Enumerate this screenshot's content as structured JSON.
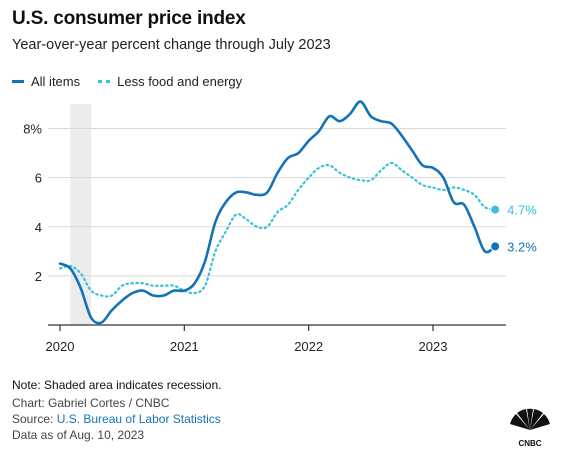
{
  "header": {
    "title": "U.S. consumer price index",
    "subtitle": "Year-over-year percent change through July 2023"
  },
  "footer": {
    "note": "Note: Shaded area indicates recession.",
    "credit": "Chart: Gabriel Cortes / CNBC",
    "source_prefix": "Source: ",
    "source_link": "U.S. Bureau of Labor Statistics",
    "data_as_of": "Data as of Aug. 10, 2023",
    "logo_text": "CNBC"
  },
  "colors": {
    "all_items": "#1473b7",
    "core": "#37c2d9",
    "recession": "#ececec",
    "axis": "#333333",
    "grid": "#d9d9d9"
  },
  "chart_data": {
    "type": "line",
    "title": "U.S. consumer price index",
    "subtitle": "Year-over-year percent change through July 2023",
    "xlabel": "",
    "ylabel": "",
    "x_ticks": [
      "2020",
      "2021",
      "2022",
      "2023"
    ],
    "y_ticks": [
      2,
      4,
      6,
      8
    ],
    "y_tick_labels": [
      "2",
      "4",
      "6",
      "8%"
    ],
    "ylim": [
      0,
      9
    ],
    "grid": true,
    "legend": "top-left",
    "recession_shading": {
      "start": "2020-02",
      "end": "2020-04"
    },
    "x": [
      "2020-01",
      "2020-02",
      "2020-03",
      "2020-04",
      "2020-05",
      "2020-06",
      "2020-07",
      "2020-08",
      "2020-09",
      "2020-10",
      "2020-11",
      "2020-12",
      "2021-01",
      "2021-02",
      "2021-03",
      "2021-04",
      "2021-05",
      "2021-06",
      "2021-07",
      "2021-08",
      "2021-09",
      "2021-10",
      "2021-11",
      "2021-12",
      "2022-01",
      "2022-02",
      "2022-03",
      "2022-04",
      "2022-05",
      "2022-06",
      "2022-07",
      "2022-08",
      "2022-09",
      "2022-10",
      "2022-11",
      "2022-12",
      "2023-01",
      "2023-02",
      "2023-03",
      "2023-04",
      "2023-05",
      "2023-06",
      "2023-07"
    ],
    "series": [
      {
        "name": "All items",
        "style": "solid",
        "values": [
          2.5,
          2.3,
          1.5,
          0.3,
          0.1,
          0.6,
          1.0,
          1.3,
          1.4,
          1.2,
          1.2,
          1.4,
          1.4,
          1.7,
          2.6,
          4.2,
          5.0,
          5.4,
          5.4,
          5.3,
          5.4,
          6.2,
          6.8,
          7.0,
          7.5,
          7.9,
          8.5,
          8.3,
          8.6,
          9.1,
          8.5,
          8.3,
          8.2,
          7.7,
          7.1,
          6.5,
          6.4,
          6.0,
          5.0,
          4.9,
          4.0,
          3.0,
          3.2
        ],
        "end_label": "3.2%"
      },
      {
        "name": "Less food and energy",
        "style": "dotted",
        "values": [
          2.3,
          2.4,
          2.1,
          1.4,
          1.2,
          1.2,
          1.6,
          1.7,
          1.7,
          1.6,
          1.6,
          1.6,
          1.4,
          1.3,
          1.6,
          3.0,
          3.8,
          4.5,
          4.3,
          4.0,
          4.0,
          4.6,
          4.9,
          5.5,
          6.0,
          6.4,
          6.5,
          6.2,
          6.0,
          5.9,
          5.9,
          6.3,
          6.6,
          6.3,
          6.0,
          5.7,
          5.6,
          5.5,
          5.6,
          5.5,
          5.3,
          4.8,
          4.7
        ],
        "end_label": "4.7%"
      }
    ]
  }
}
